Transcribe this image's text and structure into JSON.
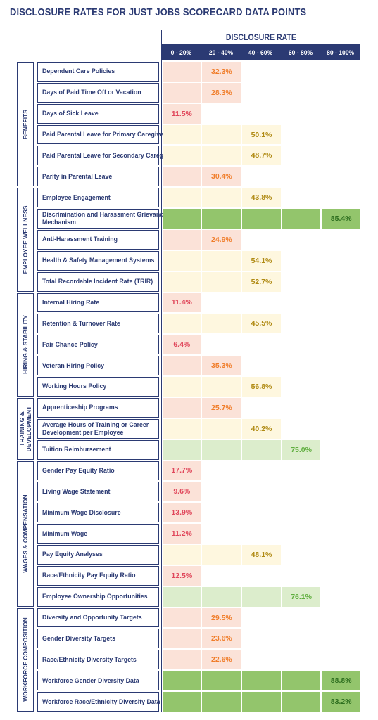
{
  "title": "DISCLOSURE RATES FOR JUST JOBS SCORECARD DATA POINTS",
  "header": "DISCLOSURE RATE",
  "bins": [
    "0 - 20%",
    "20 - 40%",
    "40 - 60%",
    "60 - 80%",
    "80 - 100%"
  ],
  "colors": {
    "navy": "#2b3a73",
    "bin_fill": [
      "#fbe2d8",
      "#fbe2d8",
      "#fef7df",
      "#dcedcc",
      "#93c56c"
    ],
    "bin_text": [
      "#e0475b",
      "#f07d2a",
      "#b08a13",
      "#5fae3e",
      "#2d6e1f"
    ]
  },
  "categories": [
    {
      "name": "BENEFITS",
      "rows": [
        0,
        5
      ]
    },
    {
      "name": "EMPLOYEE WELLNESS",
      "rows": [
        6,
        10
      ]
    },
    {
      "name": "HIRING & STABILITY",
      "rows": [
        11,
        15
      ]
    },
    {
      "name": "TRAINING &\nDEVELOPMENT",
      "rows": [
        16,
        18
      ]
    },
    {
      "name": "WAGES & COMPENSATION",
      "rows": [
        19,
        25
      ]
    },
    {
      "name": "WORKFORCE COMPOSITION",
      "rows": [
        26,
        30
      ]
    }
  ],
  "chart_data": {
    "type": "table",
    "title": "DISCLOSURE RATES FOR JUST JOBS SCORECARD DATA POINTS",
    "column_header": "DISCLOSURE RATE",
    "bins": [
      "0 - 20%",
      "20 - 40%",
      "40 - 60%",
      "60 - 80%",
      "80 - 100%"
    ],
    "rows": [
      {
        "label": "Dependent Care Policies",
        "value": 32.3,
        "text": "32.3%"
      },
      {
        "label": "Days of Paid Time Off or Vacation",
        "value": 28.3,
        "text": "28.3%"
      },
      {
        "label": "Days of Sick Leave",
        "value": 11.5,
        "text": "11.5%"
      },
      {
        "label": "Paid Parental Leave for Primary Caregivers",
        "value": 50.1,
        "text": "50.1%"
      },
      {
        "label": "Paid Parental Leave for Secondary Caregivers",
        "value": 48.7,
        "text": "48.7%"
      },
      {
        "label": "Parity in Parental Leave",
        "value": 30.4,
        "text": "30.4%"
      },
      {
        "label": "Employee Engagement",
        "value": 43.8,
        "text": "43.8%"
      },
      {
        "label": "Discrimination and Harassment Grievance\nMechanism",
        "value": 85.4,
        "text": "85.4%"
      },
      {
        "label": "Anti-Harassment Training",
        "value": 24.9,
        "text": "24.9%"
      },
      {
        "label": "Health & Safety Management Systems",
        "value": 54.1,
        "text": "54.1%"
      },
      {
        "label": "Total Recordable Incident Rate (TRIR)",
        "value": 52.7,
        "text": "52.7%"
      },
      {
        "label": "Internal Hiring Rate",
        "value": 11.4,
        "text": "11.4%"
      },
      {
        "label": "Retention & Turnover Rate",
        "value": 45.5,
        "text": "45.5%"
      },
      {
        "label": "Fair Chance Policy",
        "value": 6.4,
        "text": "6.4%"
      },
      {
        "label": "Veteran Hiring Policy",
        "value": 35.3,
        "text": "35.3%"
      },
      {
        "label": "Working Hours Policy",
        "value": 56.8,
        "text": "56.8%"
      },
      {
        "label": "Apprenticeship Programs",
        "value": 25.7,
        "text": "25.7%"
      },
      {
        "label": "Average Hours of Training or Career\nDevelopment per Employee",
        "value": 40.2,
        "text": "40.2%"
      },
      {
        "label": "Tuition Reimbursement",
        "value": 75.0,
        "text": "75.0%"
      },
      {
        "label": "Gender Pay Equity Ratio",
        "value": 17.7,
        "text": "17.7%"
      },
      {
        "label": "Living Wage Statement",
        "value": 9.6,
        "text": "9.6%"
      },
      {
        "label": "Minimum Wage Disclosure",
        "value": 13.9,
        "text": "13.9%"
      },
      {
        "label": "Minimum Wage",
        "value": 11.2,
        "text": "11.2%"
      },
      {
        "label": "Pay Equity Analyses",
        "value": 48.1,
        "text": "48.1%"
      },
      {
        "label": "Race/Ethnicity Pay Equity Ratio",
        "value": 12.5,
        "text": "12.5%"
      },
      {
        "label": "Employee Ownership Opportunities",
        "value": 76.1,
        "text": "76.1%"
      },
      {
        "label": "Diversity and Opportunity Targets",
        "value": 29.5,
        "text": "29.5%"
      },
      {
        "label": "Gender Diversity Targets",
        "value": 23.6,
        "text": "23.6%"
      },
      {
        "label": "Race/Ethnicity Diversity Targets",
        "value": 22.6,
        "text": "22.6%"
      },
      {
        "label": "Workforce Gender Diversity Data",
        "value": 88.8,
        "text": "88.8%"
      },
      {
        "label": "Workforce Race/Ethnicity Diversity Data",
        "value": 83.2,
        "text": "83.2%"
      }
    ]
  }
}
